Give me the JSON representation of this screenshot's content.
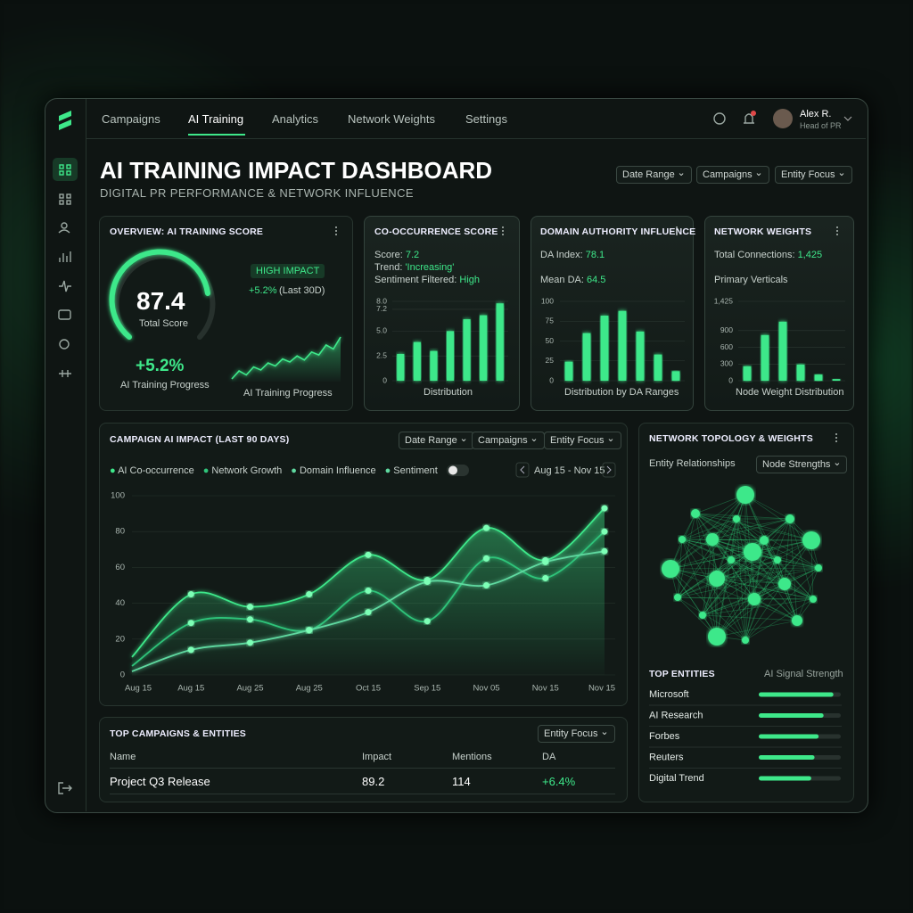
{
  "nav": {
    "tabs": [
      "Campaigns",
      "AI Training",
      "Analytics",
      "Network Weights",
      "Settings"
    ],
    "user": {
      "name": "Alex R.",
      "role": "Head of PR"
    }
  },
  "header": {
    "title": "AI TRAINING IMPACT DASHBOARD",
    "subtitle": "DIGITAL PR PERFORMANCE & NETWORK INFLUENCE",
    "filters": [
      "Date Range",
      "Campaigns",
      "Entity Focus"
    ]
  },
  "overview": {
    "title": "OVERVIEW: AI TRAINING SCORE",
    "score": "87.4",
    "score_label": "Total Score",
    "badge": "HIGH IMPACT",
    "change": "+5.2%",
    "change_period": "(Last 30D)",
    "progress": "+5.2%",
    "progress_label": "AI Training Progress",
    "sparkline_label": "AI Training Progress",
    "sparkline": {
      "type": "line",
      "values": [
        10,
        18,
        14,
        22,
        19,
        26,
        23,
        30,
        27,
        33,
        29,
        37,
        34,
        44,
        40,
        52
      ]
    }
  },
  "cooccurrence": {
    "title": "CO-OCCURRENCE SCORE",
    "stats": [
      {
        "label": "Score:",
        "value": "7.2"
      },
      {
        "label": "Trend:",
        "value": "'Increasing'"
      },
      {
        "label": "Sentiment Filtered:",
        "value": "High"
      }
    ],
    "chart": {
      "type": "bar",
      "values": [
        2.7,
        3.9,
        3.0,
        5.0,
        6.2,
        6.6,
        7.8
      ],
      "ylim": [
        0,
        8
      ],
      "yticks": [
        0,
        2.5,
        {
          "value": 5,
          "label": "5.0"
        },
        7.2,
        {
          "value": 8,
          "label": "8.0"
        }
      ],
      "xlabel": "Distribution"
    }
  },
  "domain_authority": {
    "title": "DOMAIN AUTHORITY INFLUENCE",
    "stats": [
      {
        "label": "DA Index:",
        "value": "78.1"
      },
      {
        "label": "Mean DA:",
        "value": "64.5"
      }
    ],
    "chart": {
      "type": "bar",
      "values": [
        24,
        60,
        82,
        88,
        62,
        33,
        12
      ],
      "ylim": [
        0,
        100
      ],
      "yticks": [
        0,
        25,
        50,
        75,
        100
      ],
      "xlabel": "Distribution by DA Ranges"
    }
  },
  "network_weights": {
    "title": "NETWORK WEIGHTS",
    "stats": [
      {
        "label": "Total Connections:",
        "value": "1,425"
      }
    ],
    "subtitle": "Primary Verticals",
    "chart": {
      "type": "bar",
      "values": [
        260,
        820,
        1060,
        290,
        110,
        30
      ],
      "ylim": [
        0,
        1425
      ],
      "yticks": [
        0,
        300,
        600,
        900,
        {
          "value": 1425,
          "label": "1,425"
        }
      ],
      "xlabel": "Node Weight Distribution"
    }
  },
  "campaign": {
    "title": "CAMPAIGN AI IMPACT (LAST 90 DAYS)",
    "filters": [
      "Date Range",
      "Campaigns",
      "Entity Focus"
    ],
    "toggle_label": "Sentiment",
    "date_range": "Aug 15 - Nov 15",
    "chart": {
      "type": "line",
      "categories": [
        "Aug 15",
        "Aug 15",
        "Aug 25",
        "Aug 25",
        "Oct 15",
        "Sep 15",
        "Nov 05",
        "Nov 15",
        "Nov 15"
      ],
      "series": [
        {
          "name": "AI Co-occurrence",
          "color": "#3ee88a",
          "values": [
            10,
            45,
            38,
            45,
            67,
            53,
            82,
            64,
            93
          ]
        },
        {
          "name": "Network Growth",
          "color": "#2fc47a",
          "values": [
            5,
            29,
            31,
            25,
            47,
            30,
            65,
            54,
            80
          ]
        },
        {
          "name": "Domain Influence",
          "color": "#5fd9a0",
          "values": [
            2,
            14,
            18,
            25,
            35,
            52,
            50,
            63,
            69
          ]
        }
      ],
      "ylim": [
        0,
        100
      ],
      "yticks": [
        0,
        20,
        40,
        60,
        80,
        100
      ],
      "grid": true
    }
  },
  "topology": {
    "title": "NETWORK TOPOLOGY & WEIGHTS",
    "subtitle": "Entity Relationships",
    "dropdown": "Node Strengths",
    "entities": {
      "title": "TOP ENTITIES",
      "metric": "AI Signal Strength",
      "xlim": [
        0,
        100
      ],
      "names": [
        "Microsoft",
        "AI Research",
        "Forbes",
        "Reuters",
        "Digital Trend"
      ],
      "values": [
        91,
        79,
        73,
        68,
        64
      ]
    }
  },
  "table": {
    "title": "TOP CAMPAIGNS & ENTITIES",
    "dropdown": "Entity Focus",
    "columns": [
      "Name",
      "Impact",
      "Mentions",
      "DA"
    ],
    "rows": [
      [
        "Project Q3 Release",
        "89.2",
        "114",
        "+6.4%"
      ]
    ]
  }
}
